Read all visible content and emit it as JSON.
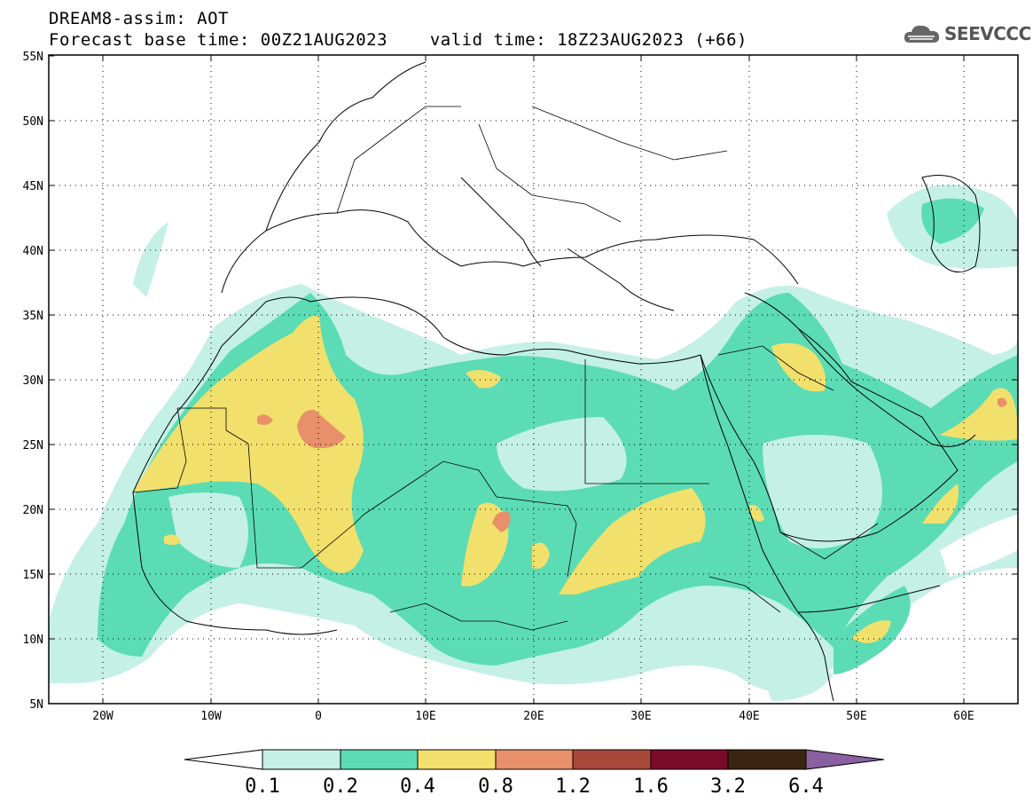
{
  "header": {
    "model_title": "DREAM8-assim: AOT",
    "base_time": "Forecast base time: 00Z21AUG2023",
    "valid_time": "valid time: 18Z23AUG2023 (+66)"
  },
  "logo": {
    "text": "SEEVCCC",
    "icon": "cloud-logo-icon"
  },
  "map": {
    "lon_range": [
      -25,
      65
    ],
    "lat_range": [
      5,
      55
    ],
    "lat_labels": [
      "5N",
      "10N",
      "15N",
      "20N",
      "25N",
      "30N",
      "35N",
      "40N",
      "45N",
      "50N",
      "55N"
    ],
    "lon_labels": [
      "20W",
      "10W",
      "0",
      "10E",
      "20E",
      "30E",
      "40E",
      "50E",
      "60E"
    ],
    "grid": "dotted",
    "variable": "Aerosol Optical Thickness"
  },
  "colorbar": {
    "labels": [
      "0.1",
      "0.2",
      "0.4",
      "0.8",
      "1.2",
      "1.6",
      "3.2",
      "6.4"
    ],
    "colors": [
      "#ffffff",
      "#c4f0e6",
      "#5cdcb4",
      "#f2e06c",
      "#e8906a",
      "#a8483a",
      "#7a0a2a",
      "#3c2410",
      "#8a60a0"
    ]
  }
}
